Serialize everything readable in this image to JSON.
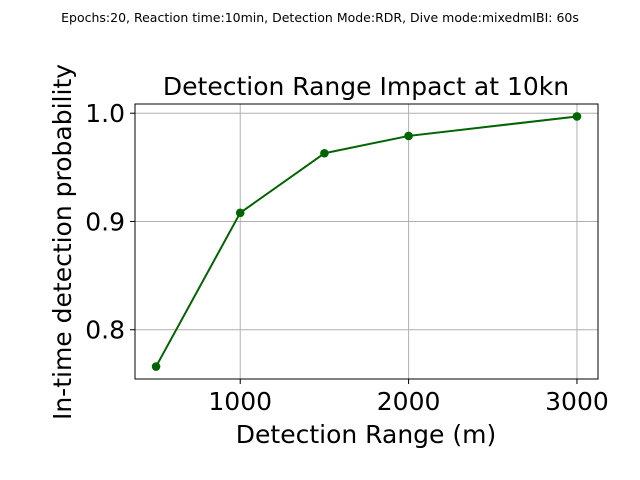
{
  "figure": {
    "suptitle": "Epochs:20, Reaction time:10min, Detection Mode:RDR, Dive mode:mixedmIBI: 60s"
  },
  "chart_data": {
    "type": "line",
    "title": "Detection Range Impact at 10kn",
    "xlabel": "Detection Range (m)",
    "ylabel": "In-time detection probability",
    "x": [
      500,
      1000,
      1500,
      2000,
      3000
    ],
    "series": [
      {
        "values": [
          0.766,
          0.908,
          0.963,
          0.979,
          0.997
        ],
        "color": "#006400",
        "marker": "circle"
      }
    ],
    "xlim": [
      375,
      3125
    ],
    "ylim": [
      0.7545,
      1.0085
    ],
    "xticks": [
      1000,
      2000,
      3000
    ],
    "xtick_labels": [
      "1000",
      "2000",
      "3000"
    ],
    "yticks": [
      0.8,
      0.9,
      1.0
    ],
    "ytick_labels": [
      "0.8",
      "0.9",
      "1.0"
    ],
    "grid": true,
    "grid_color": "#b0b0b0"
  }
}
